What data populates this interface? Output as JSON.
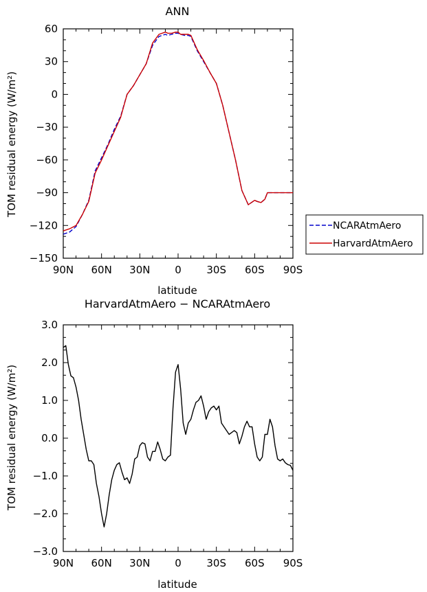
{
  "chart_data": [
    {
      "type": "line",
      "title": "ANN",
      "xlabel": "latitude",
      "ylabel": "TOM residual energy (W/m²)",
      "categories": [
        "90N",
        "60N",
        "30N",
        "0",
        "30S",
        "60S",
        "90S"
      ],
      "xlim": [
        90,
        -90
      ],
      "ylim": [
        -150,
        60
      ],
      "yticks": [
        "60",
        "30",
        "0",
        "−30",
        "−60",
        "−90",
        "−120",
        "−150"
      ],
      "ytick_values": [
        60,
        30,
        0,
        -30,
        -60,
        -90,
        -120,
        -150
      ],
      "legend_position": "right",
      "series": [
        {
          "name": "NCARAtmAero",
          "color": "#0000cc",
          "dash": "dashed",
          "x": [
            90,
            85,
            80,
            75,
            70,
            65,
            60,
            55,
            50,
            45,
            40,
            35,
            30,
            25,
            20,
            15,
            10,
            8,
            5,
            2,
            0,
            -2,
            -5,
            -8,
            -10,
            -15,
            -20,
            -25,
            -30,
            -35,
            -40,
            -45,
            -50,
            -55,
            -60,
            -62,
            -65,
            -68,
            -70,
            -72,
            -75,
            -78,
            -80,
            -82,
            -85,
            -87,
            -90
          ],
          "values": [
            -128,
            -126,
            -121,
            -110,
            -97,
            -70,
            -58,
            -46,
            -32,
            -20,
            0,
            8,
            18,
            28,
            45,
            53,
            55,
            54,
            55,
            56,
            56,
            55,
            54,
            54,
            53,
            40,
            30,
            20,
            10,
            -10,
            -35,
            -60,
            -88,
            -101,
            -97,
            -98,
            -99,
            -96,
            -90,
            -90,
            -90,
            -90,
            -90,
            -90,
            -90,
            -90,
            -90
          ]
        },
        {
          "name": "HarvardAtmAero",
          "color": "#cc0000",
          "dash": "solid",
          "x": [
            90,
            85,
            80,
            75,
            70,
            65,
            60,
            55,
            50,
            45,
            40,
            35,
            30,
            25,
            20,
            15,
            10,
            8,
            5,
            2,
            0,
            -2,
            -5,
            -8,
            -10,
            -15,
            -20,
            -25,
            -30,
            -35,
            -40,
            -45,
            -50,
            -55,
            -60,
            -62,
            -65,
            -68,
            -70,
            -72,
            -75,
            -78,
            -80,
            -82,
            -85,
            -87,
            -90
          ],
          "values": [
            -125,
            -123,
            -120,
            -110,
            -98,
            -72,
            -60,
            -47,
            -34,
            -21,
            0,
            8,
            18,
            28,
            47,
            55,
            57,
            56,
            56,
            57,
            57,
            55,
            55,
            55,
            54,
            41,
            31,
            20,
            10,
            -10,
            -35,
            -60,
            -88,
            -101,
            -97,
            -98,
            -99,
            -96,
            -90,
            -90,
            -90,
            -90,
            -90,
            -90,
            -90,
            -90,
            -90
          ]
        }
      ]
    },
    {
      "type": "line",
      "title": "HarvardAtmAero − NCARAtmAero",
      "xlabel": "latitude",
      "ylabel": "TOM residual energy (W/m²)",
      "categories": [
        "90N",
        "60N",
        "30N",
        "0",
        "30S",
        "60S",
        "90S"
      ],
      "xlim": [
        90,
        -90
      ],
      "ylim": [
        -3,
        3
      ],
      "yticks": [
        "3.0",
        "2.0",
        "1.0",
        "0.0",
        "−1.0",
        "−2.0",
        "−3.0"
      ],
      "ytick_values": [
        3,
        2,
        1,
        0,
        -1,
        -2,
        -3
      ],
      "series": [
        {
          "color": "#000000",
          "dash": "solid",
          "x": [
            90,
            88,
            86,
            84,
            82,
            80,
            78,
            76,
            74,
            72,
            70,
            68,
            66,
            64,
            62,
            60,
            58,
            56,
            54,
            52,
            50,
            48,
            46,
            44,
            42,
            40,
            38,
            36,
            34,
            32,
            30,
            28,
            26,
            24,
            22,
            20,
            18,
            16,
            14,
            12,
            10,
            8,
            6,
            4,
            2,
            0,
            -2,
            -4,
            -6,
            -8,
            -10,
            -12,
            -14,
            -16,
            -18,
            -20,
            -22,
            -24,
            -26,
            -28,
            -30,
            -32,
            -34,
            -36,
            -38,
            -40,
            -42,
            -44,
            -46,
            -48,
            -50,
            -52,
            -54,
            -56,
            -58,
            -60,
            -62,
            -64,
            -66,
            -68,
            -70,
            -72,
            -74,
            -76,
            -78,
            -80,
            -82,
            -84,
            -86,
            -88,
            -90
          ],
          "values": [
            2.4,
            2.45,
            1.95,
            1.65,
            1.6,
            1.35,
            1.0,
            0.5,
            0.1,
            -0.3,
            -0.6,
            -0.6,
            -0.7,
            -1.2,
            -1.55,
            -2.0,
            -2.35,
            -2.0,
            -1.5,
            -1.1,
            -0.85,
            -0.7,
            -0.65,
            -0.9,
            -1.1,
            -1.05,
            -1.2,
            -0.95,
            -0.55,
            -0.5,
            -0.2,
            -0.12,
            -0.15,
            -0.5,
            -0.6,
            -0.35,
            -0.35,
            -0.1,
            -0.3,
            -0.55,
            -0.6,
            -0.5,
            -0.45,
            0.8,
            1.75,
            1.95,
            1.3,
            0.4,
            0.1,
            0.4,
            0.5,
            0.75,
            0.95,
            1.0,
            1.12,
            0.85,
            0.5,
            0.7,
            0.8,
            0.85,
            0.75,
            0.85,
            0.4,
            0.3,
            0.2,
            0.1,
            0.15,
            0.2,
            0.15,
            -0.15,
            0.05,
            0.3,
            0.45,
            0.3,
            0.3,
            -0.15,
            -0.5,
            -0.6,
            -0.5,
            0.1,
            0.1,
            0.5,
            0.3,
            -0.2,
            -0.55,
            -0.6,
            -0.55,
            -0.65,
            -0.7,
            -0.72,
            -0.85
          ]
        }
      ]
    }
  ]
}
